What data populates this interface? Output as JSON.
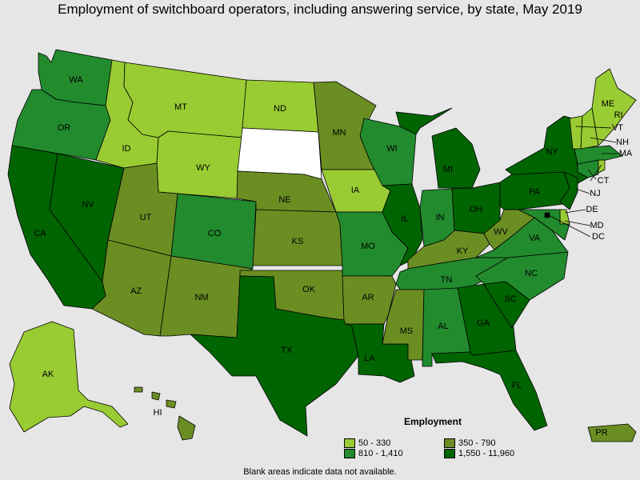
{
  "title": "Employment of switchboard operators, including answering service, by state, May 2019",
  "colors": {
    "c1": "#99cc33",
    "c2": "#6b8e23",
    "c3": "#228b2e",
    "c4": "#006400",
    "blank": "#ffffff",
    "water": "#e6e6e6"
  },
  "legend": {
    "title": "Employment",
    "items": [
      {
        "label": "50 - 330",
        "color": "#99cc33"
      },
      {
        "label": "350 - 790",
        "color": "#6b8e23"
      },
      {
        "label": "810 - 1,410",
        "color": "#228b2e"
      },
      {
        "label": "1,550 - 11,960",
        "color": "#006400"
      }
    ]
  },
  "footnote": "Blank areas indicate data not available.",
  "states": [
    {
      "abbr": "WA",
      "class": "c3"
    },
    {
      "abbr": "OR",
      "class": "c3"
    },
    {
      "abbr": "CA",
      "class": "c4"
    },
    {
      "abbr": "NV",
      "class": "c4"
    },
    {
      "abbr": "ID",
      "class": "c1"
    },
    {
      "abbr": "MT",
      "class": "c1"
    },
    {
      "abbr": "WY",
      "class": "c1"
    },
    {
      "abbr": "UT",
      "class": "c2"
    },
    {
      "abbr": "AZ",
      "class": "c2"
    },
    {
      "abbr": "CO",
      "class": "c3"
    },
    {
      "abbr": "NM",
      "class": "c2"
    },
    {
      "abbr": "ND",
      "class": "c1"
    },
    {
      "abbr": "SD",
      "class": "blank"
    },
    {
      "abbr": "NE",
      "class": "c2"
    },
    {
      "abbr": "KS",
      "class": "c2"
    },
    {
      "abbr": "OK",
      "class": "c2"
    },
    {
      "abbr": "TX",
      "class": "c4"
    },
    {
      "abbr": "MN",
      "class": "c2"
    },
    {
      "abbr": "IA",
      "class": "c1"
    },
    {
      "abbr": "MO",
      "class": "c3"
    },
    {
      "abbr": "AR",
      "class": "c2"
    },
    {
      "abbr": "LA",
      "class": "c4"
    },
    {
      "abbr": "WI",
      "class": "c3"
    },
    {
      "abbr": "IL",
      "class": "c4"
    },
    {
      "abbr": "MI",
      "class": "c4"
    },
    {
      "abbr": "IN",
      "class": "c3"
    },
    {
      "abbr": "OH",
      "class": "c4"
    },
    {
      "abbr": "KY",
      "class": "c2"
    },
    {
      "abbr": "TN",
      "class": "c3"
    },
    {
      "abbr": "MS",
      "class": "c2"
    },
    {
      "abbr": "AL",
      "class": "c3"
    },
    {
      "abbr": "GA",
      "class": "c4"
    },
    {
      "abbr": "FL",
      "class": "c4"
    },
    {
      "abbr": "SC",
      "class": "c4"
    },
    {
      "abbr": "NC",
      "class": "c3"
    },
    {
      "abbr": "VA",
      "class": "c3"
    },
    {
      "abbr": "WV",
      "class": "c2"
    },
    {
      "abbr": "PA",
      "class": "c4"
    },
    {
      "abbr": "NY",
      "class": "c4"
    },
    {
      "abbr": "NJ",
      "class": "c4"
    },
    {
      "abbr": "DE",
      "class": "c1"
    },
    {
      "abbr": "MD",
      "class": "c3"
    },
    {
      "abbr": "DC",
      "class": "c4"
    },
    {
      "abbr": "CT",
      "class": "c3"
    },
    {
      "abbr": "RI",
      "class": "c1"
    },
    {
      "abbr": "MA",
      "class": "c3"
    },
    {
      "abbr": "VT",
      "class": "c1"
    },
    {
      "abbr": "NH",
      "class": "c1"
    },
    {
      "abbr": "ME",
      "class": "c1"
    },
    {
      "abbr": "AK",
      "class": "c1"
    },
    {
      "abbr": "HI",
      "class": "c2"
    },
    {
      "abbr": "PR",
      "class": "c2"
    }
  ]
}
